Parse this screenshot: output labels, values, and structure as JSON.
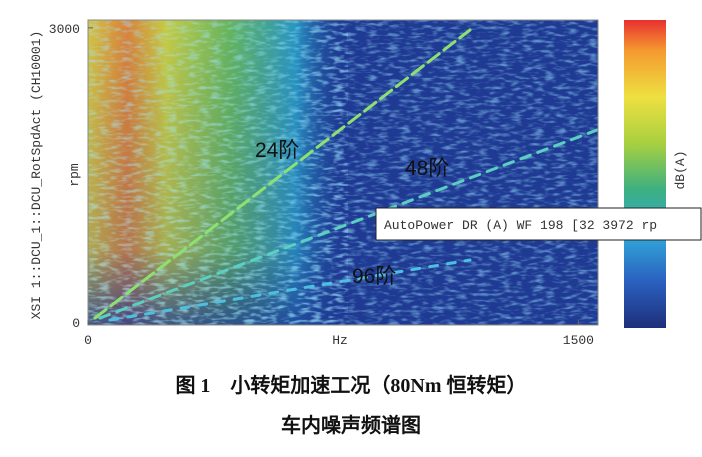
{
  "figure": {
    "y_axis_label": "XSI 1::DCU_1::DCU_RotSpdAct (CH10001)",
    "y_unit": "rpm",
    "x_unit": "Hz",
    "xlim": [
      0,
      1560
    ],
    "ylim": [
      -30,
      3080
    ],
    "xticks": [
      0,
      1500
    ],
    "yticks": [
      0,
      3000
    ],
    "colorbar_label": "dB(A)",
    "annotations": [
      "24阶",
      "48阶",
      "96阶"
    ],
    "tooltip": "AutoPower DR (A) WF 198 [32 3972 rp"
  },
  "caption": {
    "line1": "图 1　小转矩加速工况（80Nm 恒转矩）",
    "line2": "车内噪声频谱图"
  }
}
